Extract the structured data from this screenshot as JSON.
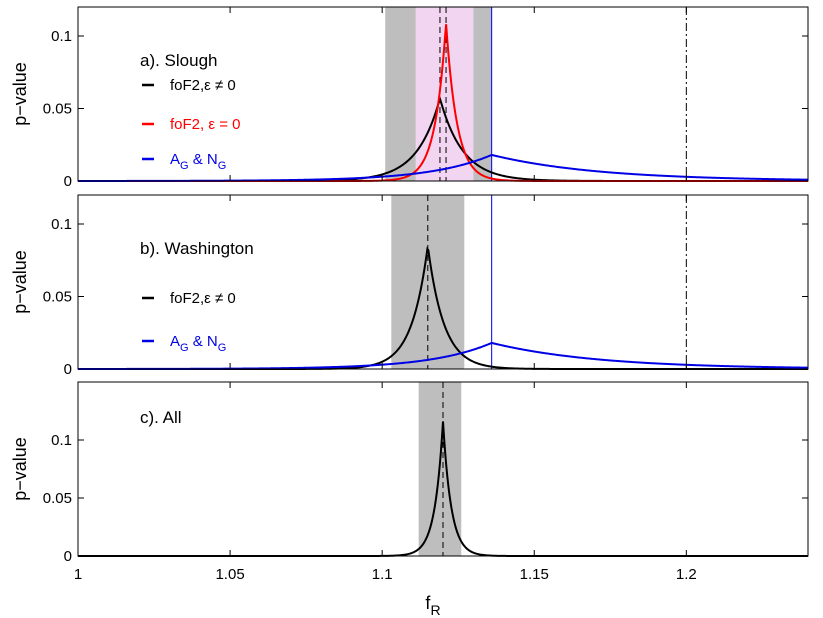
{
  "chart_data": {
    "type": "line",
    "xlabel": "f",
    "xlabel_sub": "R",
    "xlim": [
      1.0,
      1.24
    ],
    "xticks": [
      1,
      1.05,
      1.1,
      1.15,
      1.2
    ],
    "xtick_labels": [
      "1",
      "1.05",
      "1.1",
      "1.15",
      "1.2"
    ],
    "reference_line_x": 1.2,
    "colors": {
      "black": "#000000",
      "red": "#ff0000",
      "blue": "#0000e6",
      "gray_band": "#bebebe",
      "pink_band": "#f2d5f0"
    },
    "panels": [
      {
        "label": "a). Slough",
        "ylabel": "p−value",
        "ylim": [
          0,
          0.12
        ],
        "yticks": [
          0,
          0.05,
          0.1
        ],
        "ytick_labels": [
          "0",
          "0.05",
          "0.1"
        ],
        "gray_band": [
          1.101,
          1.136
        ],
        "pink_band": [
          1.111,
          1.13
        ],
        "dashed_lines_x": [
          1.119,
          1.121
        ],
        "blue_vline_x": 1.136,
        "series": [
          {
            "name": "foF2,ε ≠ 0",
            "color": "#000000",
            "shape": "laplace",
            "peak_x": 1.119,
            "peak_y": 0.057,
            "width_left": 0.0075,
            "width_right": 0.0075
          },
          {
            "name": "foF2, ε = 0",
            "color": "#ff0000",
            "shape": "laplace",
            "peak_x": 1.121,
            "peak_y": 0.109,
            "width_left": 0.0036,
            "width_right": 0.0036
          },
          {
            "name": "A",
            "name_sub": "G",
            "name_mid": " & N",
            "name_sub2": "G",
            "color": "#0000e6",
            "shape": "laplace",
            "peak_x": 1.136,
            "peak_y": 0.018,
            "width_left": 0.02,
            "width_right": 0.035
          }
        ]
      },
      {
        "label": "b). Washington",
        "ylabel": "p−value",
        "ylim": [
          0,
          0.12
        ],
        "yticks": [
          0,
          0.05,
          0.1
        ],
        "ytick_labels": [
          "0",
          "0.05",
          "0.1"
        ],
        "gray_band": [
          1.103,
          1.127
        ],
        "dashed_lines_x": [
          1.115
        ],
        "blue_vline_x": 1.136,
        "series": [
          {
            "name": "foF2,ε ≠ 0",
            "color": "#000000",
            "shape": "laplace",
            "peak_x": 1.115,
            "peak_y": 0.085,
            "width_left": 0.0053,
            "width_right": 0.0053
          },
          {
            "name": "A",
            "name_sub": "G",
            "name_mid": " & N",
            "name_sub2": "G",
            "color": "#0000e6",
            "shape": "laplace",
            "peak_x": 1.136,
            "peak_y": 0.018,
            "width_left": 0.02,
            "width_right": 0.035
          }
        ]
      },
      {
        "label": "c). All",
        "ylabel": "p−value",
        "ylim": [
          0,
          0.15
        ],
        "yticks": [
          0,
          0.05,
          0.1
        ],
        "ytick_labels": [
          "0",
          "0.05",
          "0.1"
        ],
        "gray_band": [
          1.112,
          1.126
        ],
        "dashed_lines_x": [
          1.12
        ],
        "series": [
          {
            "color": "#000000",
            "shape": "laplace",
            "peak_x": 1.12,
            "peak_y": 0.116,
            "width_left": 0.0027,
            "width_right": 0.0027
          }
        ]
      }
    ]
  }
}
